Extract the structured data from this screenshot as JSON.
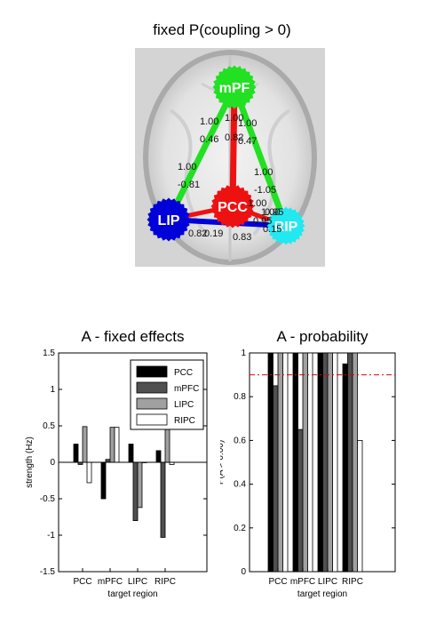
{
  "main_title": "fixed P(coupling > 0)",
  "network": {
    "nodes": [
      {
        "label": "mPF",
        "color": "#22e022"
      },
      {
        "label": "LIP",
        "color": "#0000d8"
      },
      {
        "label": "PCC",
        "color": "#ee1111"
      },
      {
        "label": "RIP",
        "color": "#22e8f0"
      }
    ],
    "edge_labels": [
      "1.00",
      "0.46",
      "1.00",
      "0.82",
      "1.00",
      "0.47",
      "1.00",
      "-0.81",
      "1.00",
      "-1.05",
      "1.00",
      "0.95",
      "0.83",
      "0.15",
      "0.19",
      "0.82",
      "1.00",
      "0.95"
    ]
  },
  "chart_data": [
    {
      "type": "bar",
      "title": "A - fixed effects",
      "xlabel": "target region",
      "ylabel": "strength (Hz)",
      "categories": [
        "PCC",
        "mPFC",
        "LIPC",
        "RIPC"
      ],
      "ylim": [
        -1.5,
        1.5
      ],
      "yticks": [
        "-1.5",
        "-1",
        "-0.5",
        "0",
        "0.5",
        "1",
        "1.5"
      ],
      "legend_position": "top-right",
      "colors": [
        "#000000",
        "#505050",
        "#a0a0a0",
        "#ffffff"
      ],
      "series": [
        {
          "name": "PCC",
          "values": [
            0.25,
            -0.5,
            0.25,
            0.16
          ]
        },
        {
          "name": "mPFC",
          "values": [
            -0.03,
            0.04,
            -0.8,
            -1.03
          ]
        },
        {
          "name": "LIPC",
          "values": [
            0.49,
            0.48,
            -0.62,
            0.49
          ]
        },
        {
          "name": "RIPC",
          "values": [
            -0.28,
            0.48,
            0.0,
            -0.03
          ]
        }
      ]
    },
    {
      "type": "bar",
      "title": "A - probability",
      "xlabel": "target region",
      "ylabel": "P(A > 0.00)",
      "categories": [
        "PCC",
        "mPFC",
        "LIPC",
        "RIPC"
      ],
      "ylim": [
        0,
        1
      ],
      "yticks": [
        "0",
        "0.2",
        "0.4",
        "0.6",
        "0.8",
        "1"
      ],
      "threshold": 0.9,
      "colors": [
        "#000000",
        "#505050",
        "#a0a0a0",
        "#ffffff"
      ],
      "series": [
        {
          "name": "PCC",
          "values": [
            1.0,
            1.0,
            1.0,
            0.95
          ]
        },
        {
          "name": "mPFC",
          "values": [
            0.85,
            0.65,
            1.0,
            1.0
          ]
        },
        {
          "name": "LIPC",
          "values": [
            1.0,
            1.0,
            1.0,
            1.0
          ]
        },
        {
          "name": "RIPC",
          "values": [
            1.0,
            1.0,
            1.0,
            0.6
          ]
        }
      ]
    }
  ]
}
